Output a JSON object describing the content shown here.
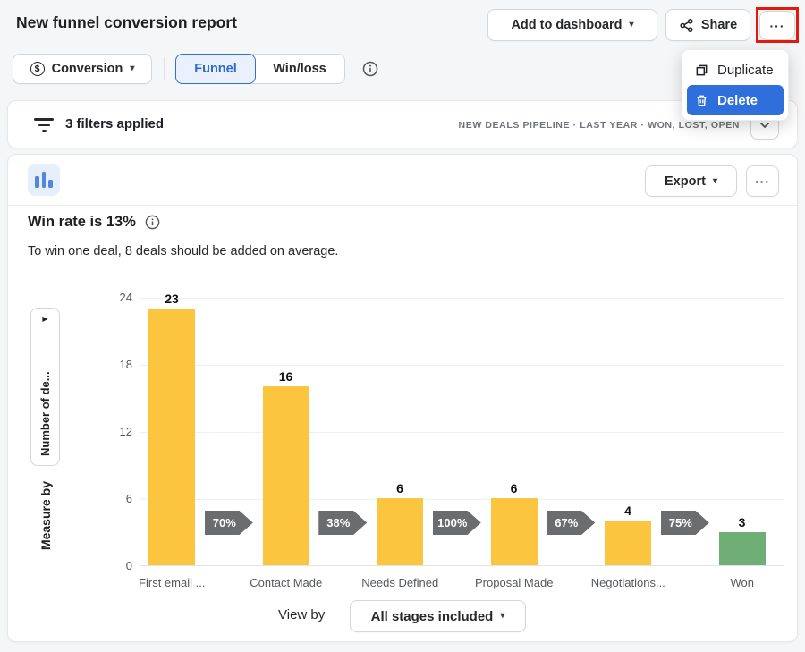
{
  "icons": {
    "caret_down": "▾",
    "more_dots": "···",
    "expand_triangle": "▶",
    "dollar": "$"
  },
  "header": {
    "title": "New funnel conversion report",
    "add_to_dashboard": "Add to dashboard",
    "share": "Share"
  },
  "menu": {
    "items": [
      {
        "label": "Duplicate"
      },
      {
        "label": "Delete"
      }
    ],
    "highlight_color": "#2e6fdb"
  },
  "controls": {
    "metric_label": "Conversion",
    "tabs": [
      {
        "label": "Funnel",
        "active": true
      },
      {
        "label": "Win/loss",
        "active": false
      }
    ]
  },
  "filter_bar": {
    "label": "3 filters applied",
    "summary": "NEW DEALS PIPELINE  ·  LAST YEAR  ·  WON, LOST, OPEN"
  },
  "chart_card": {
    "export": "Export",
    "measure_by": "Measure by",
    "view_by": "View by",
    "view_by_value": "All stages included"
  },
  "chart_data": {
    "type": "bar",
    "title": "Win rate is 13%",
    "subtitle": "To win one deal, 8 deals should be added on average.",
    "categories": [
      "First email ...",
      "Contact Made",
      "Needs Defined",
      "Proposal Made",
      "Negotiations...",
      "Won"
    ],
    "values": [
      23,
      16,
      6,
      6,
      4,
      3
    ],
    "bar_colors": [
      "#fcc53f",
      "#fcc53f",
      "#fcc53f",
      "#fcc53f",
      "#fcc53f",
      "#6fae75"
    ],
    "conversion_rates": [
      "70%",
      "38%",
      "100%",
      "67%",
      "75%"
    ],
    "arrow_color": "#6a6c6e",
    "ylabel": "Number of de...",
    "xlabel": "",
    "yticks": [
      0,
      6,
      12,
      18,
      24
    ],
    "ylim": [
      0,
      24
    ],
    "grid": true,
    "legend_position": "none"
  }
}
